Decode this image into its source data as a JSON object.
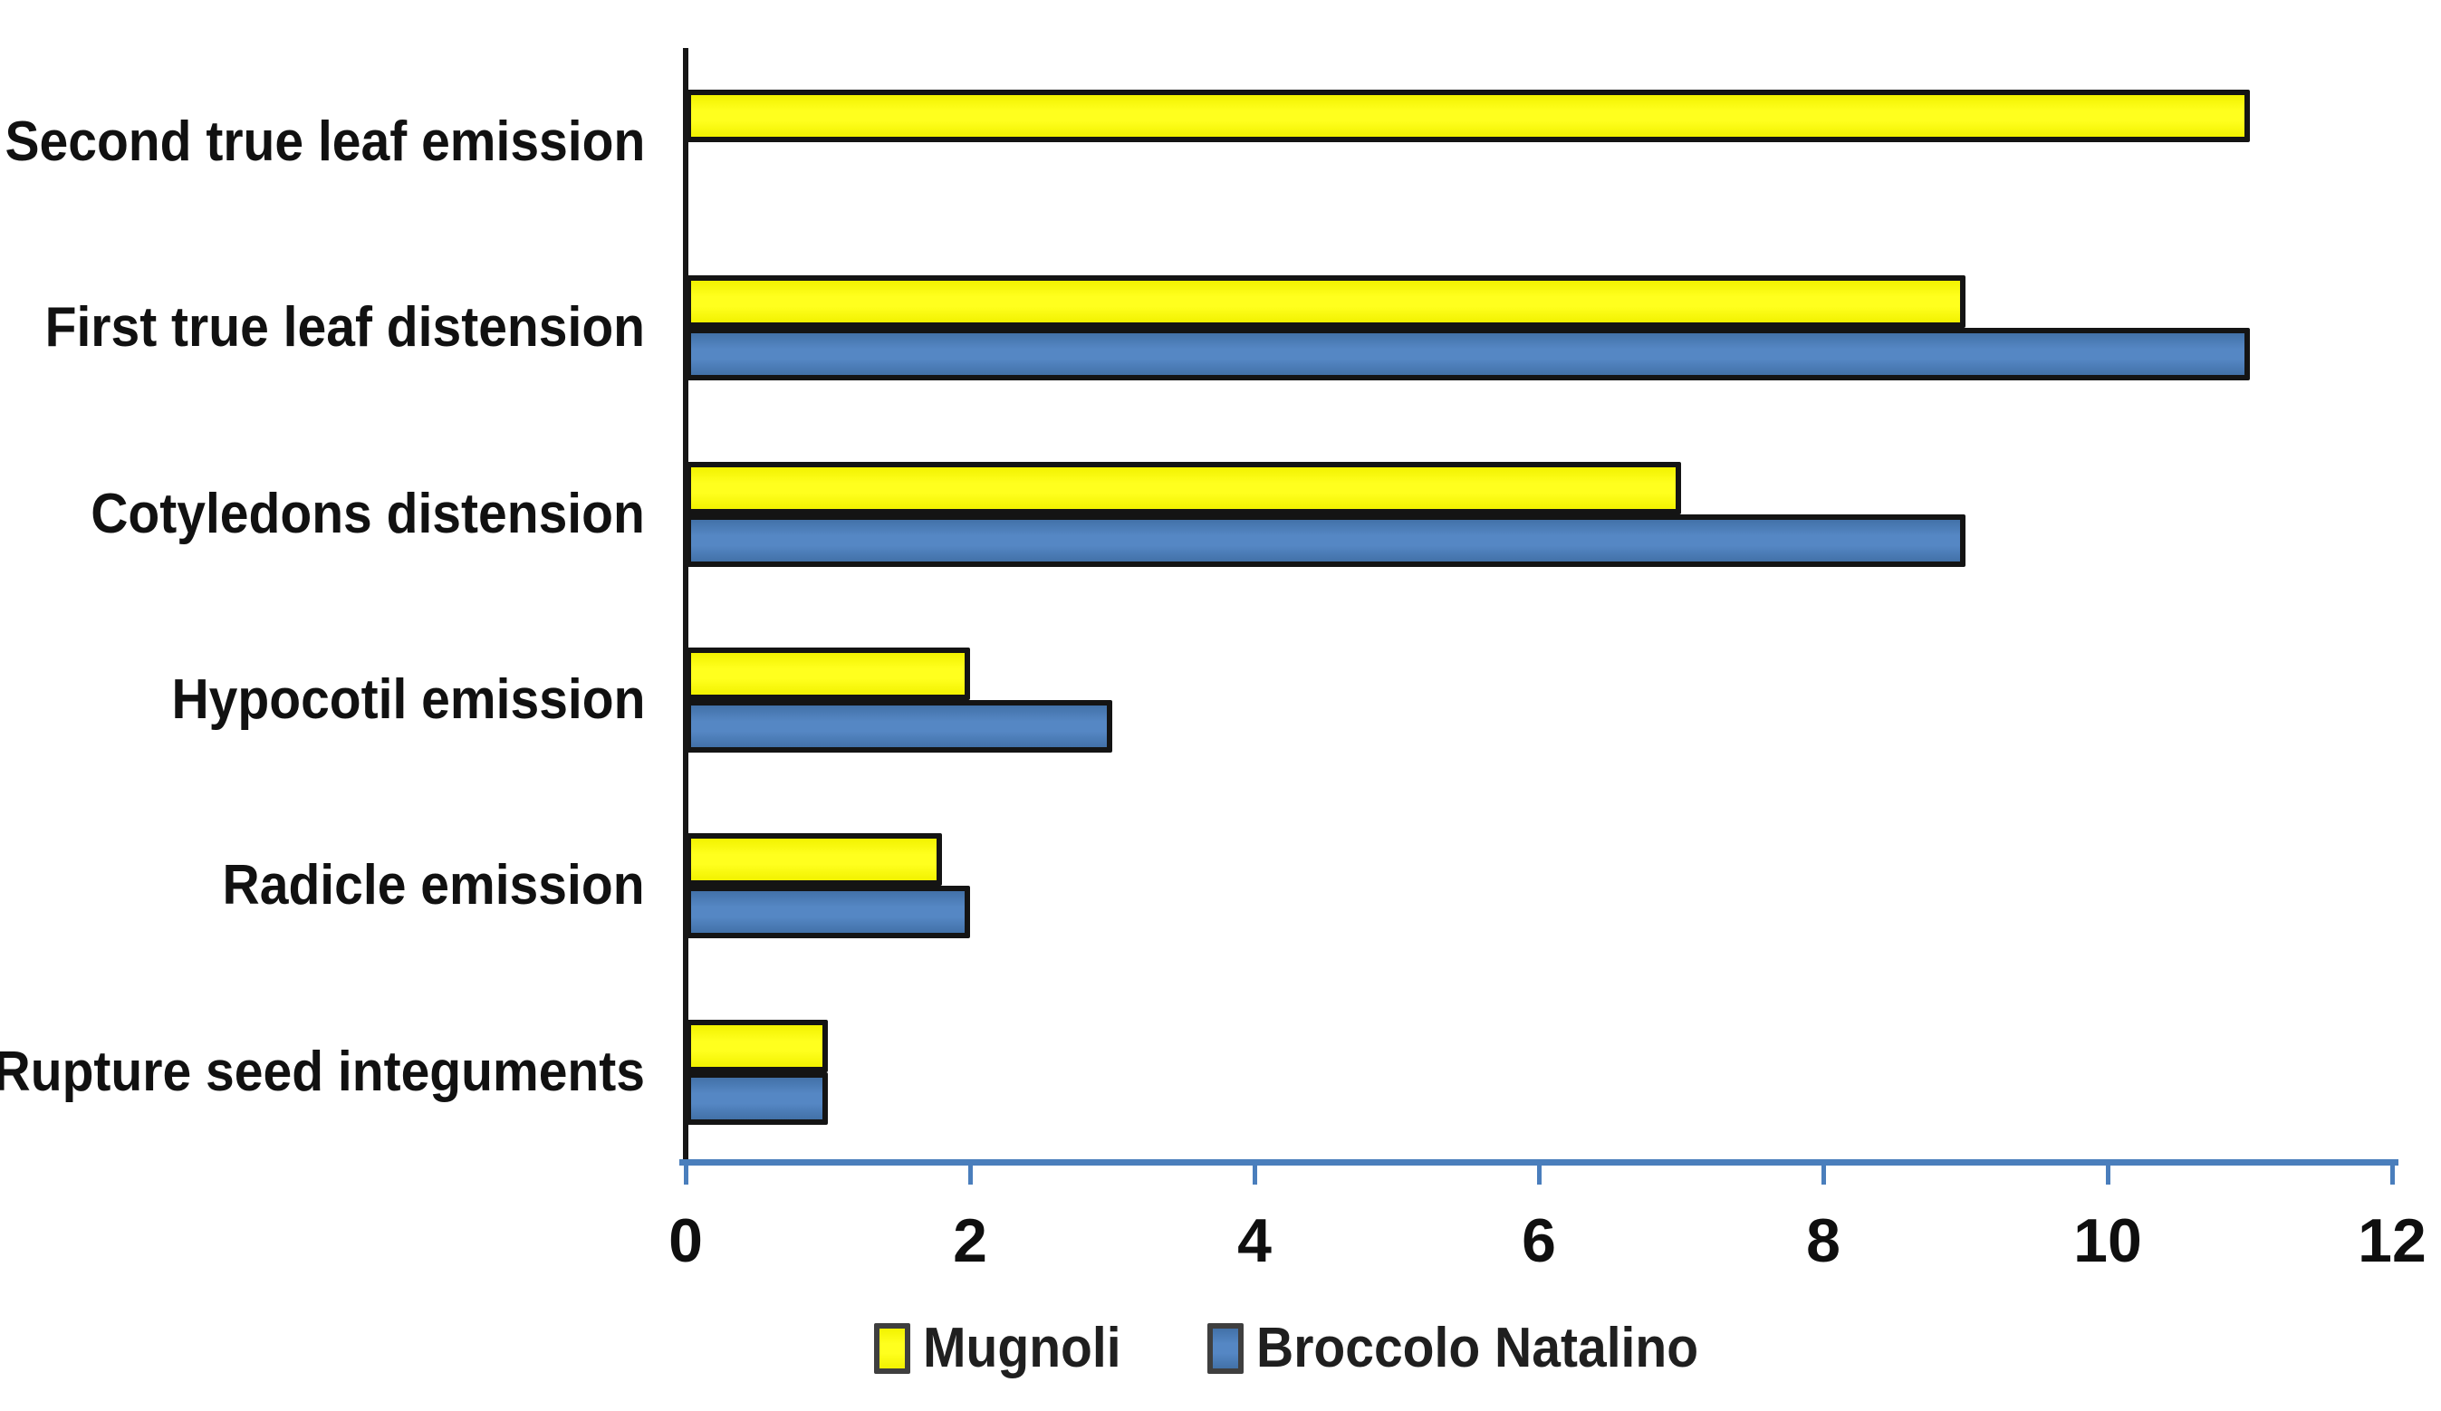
{
  "chart_data": {
    "type": "bar",
    "orientation": "horizontal",
    "title": "",
    "xlabel": "",
    "ylabel": "",
    "categories": [
      "Second true leaf emission",
      "First true leaf distension",
      "Cotyledons distension",
      "Hypocotil emission",
      "Radicle emission",
      "Rupture seed integuments"
    ],
    "series": [
      {
        "name": "Mugnoli",
        "color": "#FFFF00",
        "gradient": {
          "edge": "#F2F200",
          "center": "#FFFF1E"
        },
        "values": [
          11,
          9,
          7,
          2,
          1.8,
          1
        ]
      },
      {
        "name": "Broccolo Natalino",
        "color": "#4F81BD",
        "gradient": {
          "edge": "#4271A8",
          "center": "#5587C4"
        },
        "values": [
          0,
          11,
          9,
          3,
          2,
          1
        ]
      }
    ],
    "xlim": [
      0,
      12
    ],
    "x_ticks": [
      "0",
      "2",
      "4",
      "6",
      "8",
      "10",
      "12"
    ],
    "x_tick_values": [
      0,
      2,
      4,
      6,
      8,
      10,
      12
    ],
    "grid": false,
    "legend_position": "bottom",
    "bar_border_color": "#141414",
    "axis_line_color": "#4A7EBC",
    "y_axis_line_color": "#161616",
    "axis_text_color": "#0F0F0F",
    "legend_swatch_border": "#3F3F3F"
  }
}
